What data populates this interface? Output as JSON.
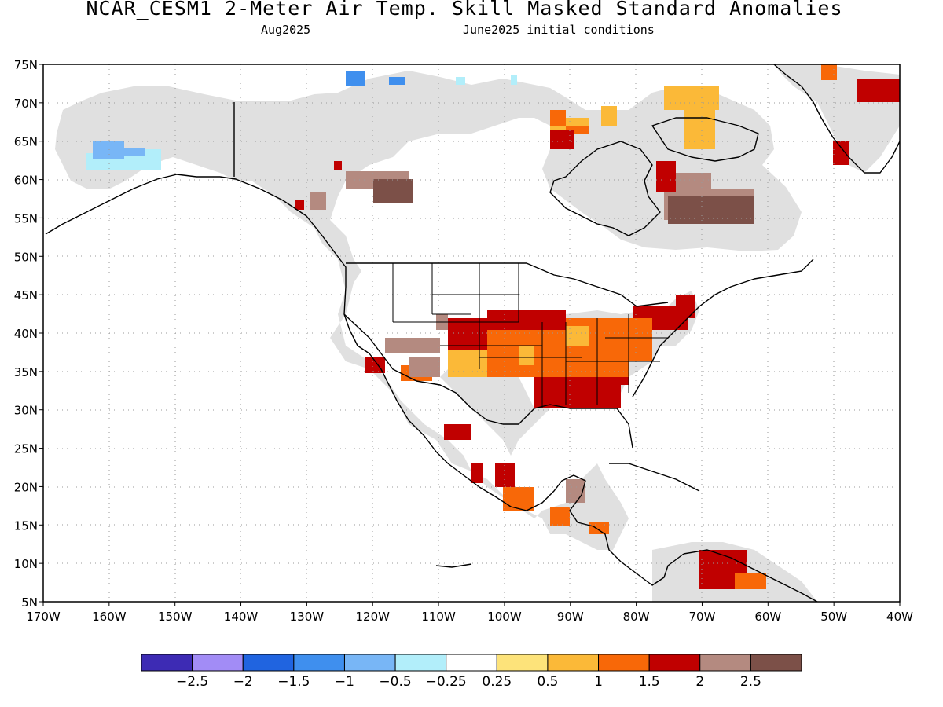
{
  "header": {
    "title": "NCAR_CESM1 2-Meter Air Temp. Skill Masked Standard Anomalies",
    "valid_month": "Aug2025",
    "init": "June2025 initial conditions"
  },
  "map": {
    "lon_range": [
      -170,
      -40
    ],
    "lat_range": [
      5,
      75
    ],
    "gridlines": "dotted",
    "lat_labels": [
      "75N",
      "70N",
      "65N",
      "60N",
      "55N",
      "50N",
      "45N",
      "40N",
      "35N",
      "30N",
      "25N",
      "20N",
      "15N",
      "10N",
      "5N"
    ],
    "lon_labels": [
      "170W",
      "160W",
      "150W",
      "140W",
      "130W",
      "120W",
      "110W",
      "100W",
      "90W",
      "80W",
      "70W",
      "60W",
      "50W",
      "40W"
    ],
    "colors": {
      "masked": "#e0e0e0",
      "land_outline": "#000000",
      "ocean": "#ffffff"
    }
  },
  "colorbar": {
    "colors": [
      "#3d2bb4",
      "#a28cf6",
      "#2064e0",
      "#3f8fee",
      "#78b6f6",
      "#b2eefa",
      "#ffffff",
      "#fde37a",
      "#fbb938",
      "#f86808",
      "#c00000",
      "#b48a80",
      "#7c5048"
    ],
    "labels": [
      "-2.5",
      "-2",
      "-1.5",
      "-1",
      "-0.5",
      "-0.25",
      "0.25",
      "0.5",
      "1",
      "1.5",
      "2",
      "2.5"
    ]
  }
}
